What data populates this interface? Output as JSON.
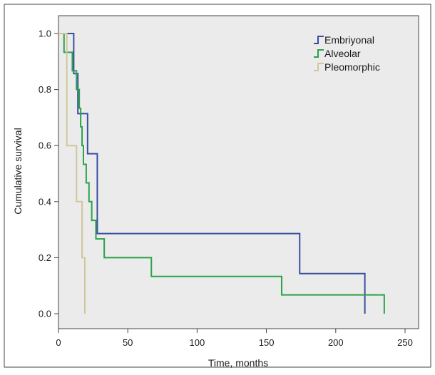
{
  "chart_data": {
    "type": "line",
    "title": "",
    "xlabel": "Time, months",
    "ylabel": "Cumulative survival",
    "xlim": [
      0,
      260
    ],
    "ylim": [
      0.0,
      1.05
    ],
    "x_ticks": [
      0,
      50,
      100,
      150,
      200,
      250
    ],
    "x_tick_labels": [
      "0",
      "50",
      "100",
      "150",
      "200",
      "250"
    ],
    "y_ticks": [
      0.0,
      0.2,
      0.4,
      0.6,
      0.8,
      1.0
    ],
    "y_tick_labels": [
      "0.0",
      "0.2",
      "0.4",
      "0.6",
      "0.8",
      "1.0"
    ],
    "grid": false,
    "legend_position": "top-right",
    "plot_background": "#ebebeb",
    "series": [
      {
        "name": "Embriyonal",
        "color": "#3a4fa0",
        "step": true,
        "x": [
          0,
          9,
          11,
          14,
          19,
          21,
          28,
          174,
          221,
          221
        ],
        "y": [
          1.0,
          1.0,
          0.857,
          0.714,
          0.714,
          0.571,
          0.286,
          0.143,
          0.143,
          0.0
        ]
      },
      {
        "name": "Alveolar",
        "color": "#2aa34a",
        "step": true,
        "x": [
          0,
          4,
          10,
          13,
          15,
          16,
          17,
          18,
          19,
          20,
          22,
          24,
          27,
          33,
          67,
          161,
          235,
          235
        ],
        "y": [
          1.0,
          0.933,
          0.867,
          0.8,
          0.733,
          0.667,
          0.6,
          0.533,
          0.533,
          0.467,
          0.4,
          0.333,
          0.267,
          0.2,
          0.133,
          0.067,
          0.067,
          0.0
        ]
      },
      {
        "name": "Pleomorphic",
        "color": "#cfc79a",
        "step": true,
        "x": [
          0,
          6,
          13,
          17,
          19,
          19
        ],
        "y": [
          1.0,
          0.6,
          0.4,
          0.2,
          0.2,
          0.0
        ]
      }
    ]
  }
}
